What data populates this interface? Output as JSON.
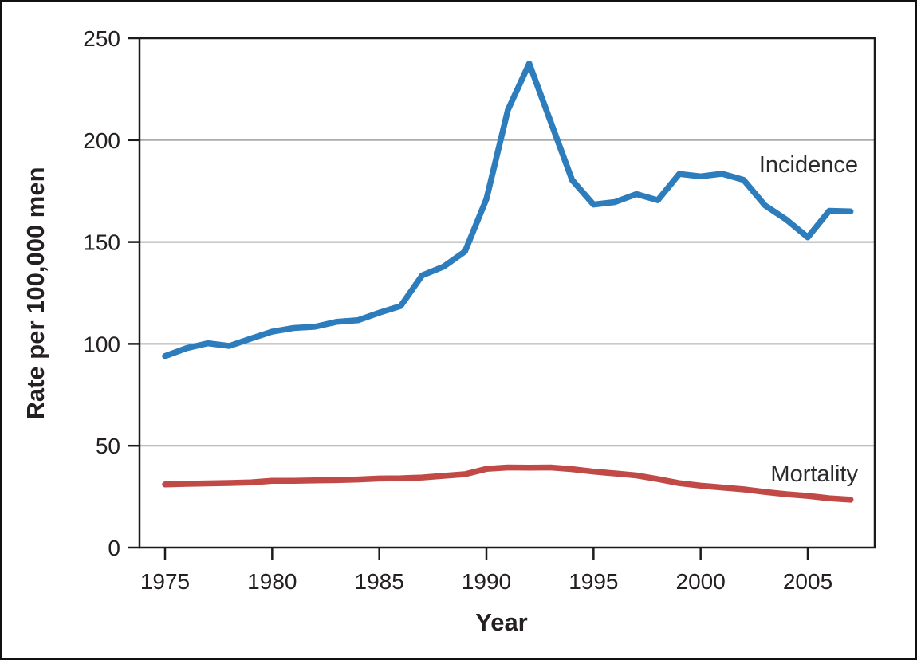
{
  "figure": {
    "ylabel": "Rate per 100,000 men",
    "xlabel": "Year"
  },
  "colors": {
    "incidence": "#2d7dbd",
    "mortality": "#c14a47",
    "grid": "#aaaaaa",
    "frame": "#1b1b1b",
    "text": "#242021",
    "background": "#ffffff"
  },
  "chart_data": {
    "type": "line",
    "title": "",
    "xlabel": "Year",
    "ylabel": "Rate per 100,000 men",
    "grid": "horizontal",
    "legend_position": "inline-right",
    "xlim": [
      1973.8,
      2008.2
    ],
    "ylim": [
      0,
      250
    ],
    "yticks": [
      0,
      50,
      100,
      150,
      200,
      250
    ],
    "xticks": [
      1975,
      1980,
      1985,
      1990,
      1995,
      2000,
      2005
    ],
    "x": [
      1975,
      1976,
      1977,
      1978,
      1979,
      1980,
      1981,
      1982,
      1983,
      1984,
      1985,
      1986,
      1987,
      1988,
      1989,
      1990,
      1991,
      1992,
      1993,
      1994,
      1995,
      1996,
      1997,
      1998,
      1999,
      2000,
      2001,
      2002,
      2003,
      2004,
      2005,
      2006,
      2007
    ],
    "series": [
      {
        "name": "Incidence",
        "color": "#2d7dbd",
        "values": [
          94.0,
          97.9,
          100.3,
          99.0,
          102.6,
          106.0,
          107.8,
          108.4,
          110.8,
          111.6,
          115.3,
          118.6,
          133.6,
          137.9,
          145.3,
          171.1,
          214.8,
          237.6,
          209.0,
          180.4,
          168.4,
          169.6,
          173.5,
          170.5,
          183.4,
          182.2,
          183.5,
          180.5,
          168.0,
          161.0,
          152.3,
          165.3,
          165.0
        ]
      },
      {
        "name": "Mortality",
        "color": "#c14a47",
        "values": [
          31.0,
          31.3,
          31.5,
          31.7,
          32.0,
          32.8,
          32.8,
          33.0,
          33.1,
          33.4,
          33.9,
          34.0,
          34.4,
          35.2,
          36.0,
          38.6,
          39.3,
          39.2,
          39.3,
          38.5,
          37.3,
          36.4,
          35.4,
          33.6,
          31.6,
          30.4,
          29.5,
          28.6,
          27.3,
          26.2,
          25.4,
          24.2,
          23.5
        ]
      }
    ]
  }
}
